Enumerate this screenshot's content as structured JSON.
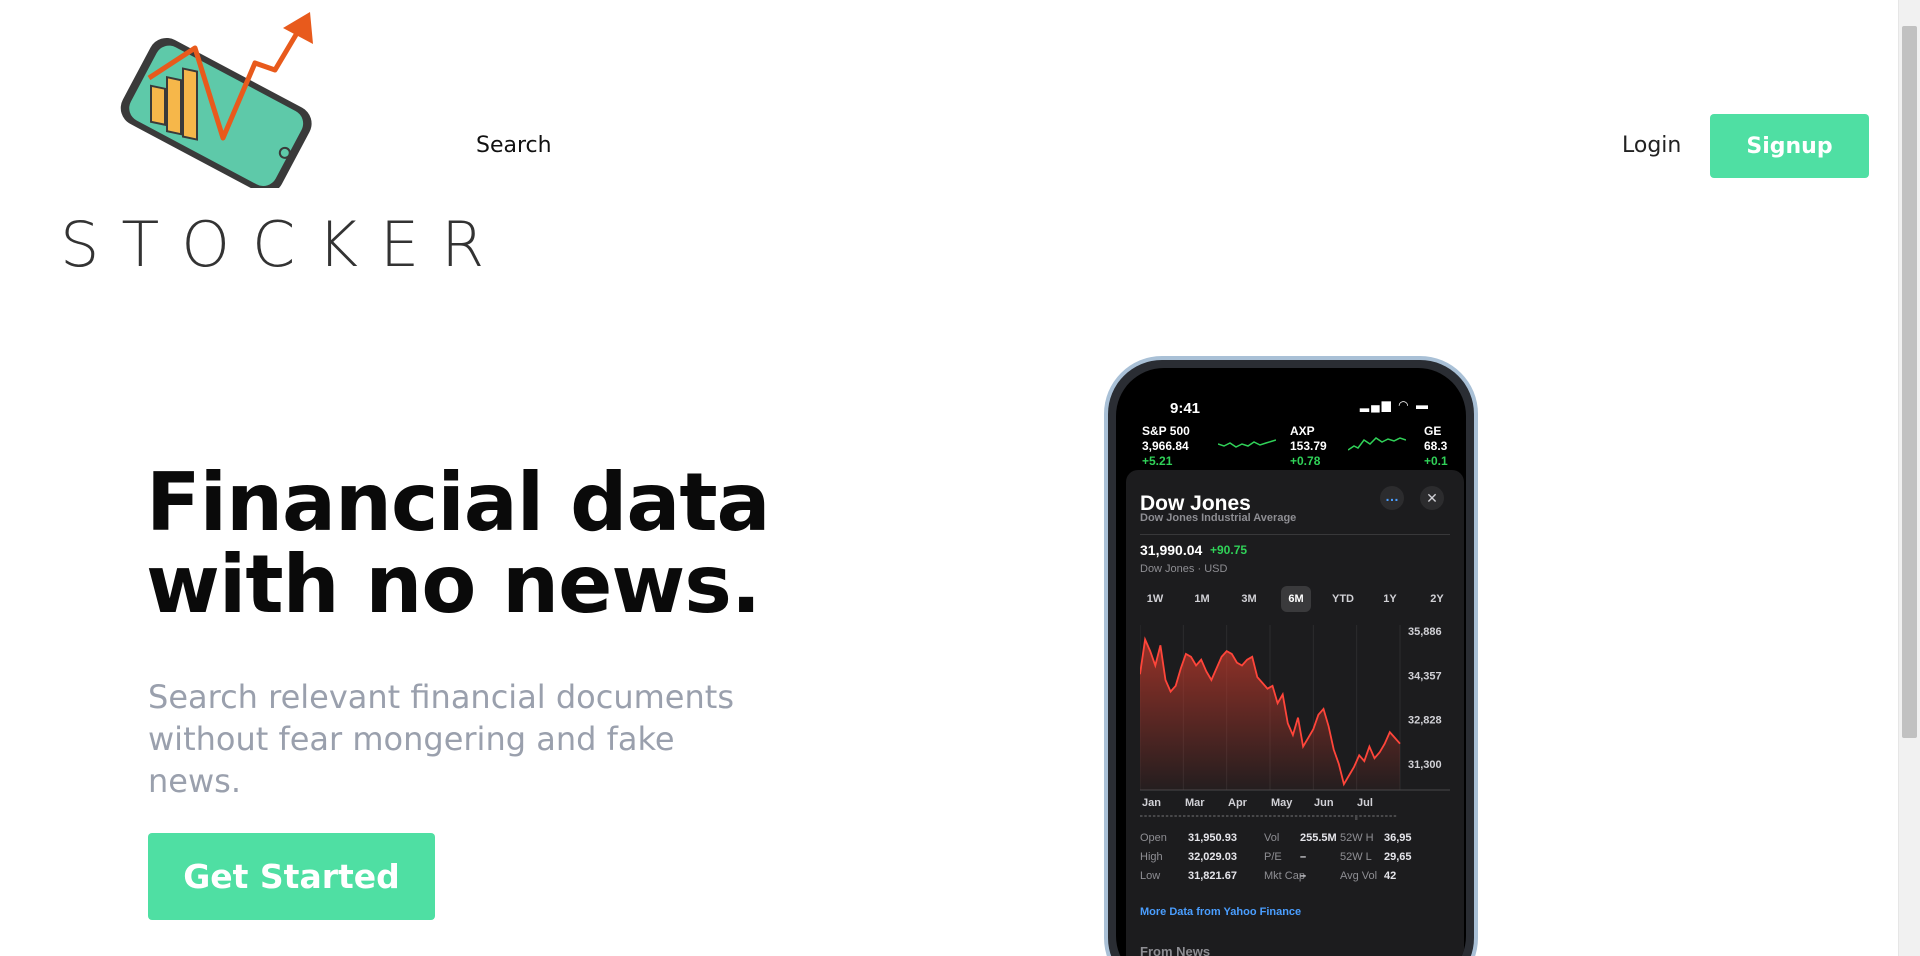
{
  "brand": {
    "name": "STOCKER",
    "accent": "#4fdfa3"
  },
  "nav": {
    "search": "Search",
    "login": "Login",
    "signup": "Signup"
  },
  "hero": {
    "title_line1": "Financial data",
    "title_line2": "with no news.",
    "subtitle": "Search relevant financial documents without fear mongering and fake news.",
    "cta": "Get Started"
  },
  "phone": {
    "time": "9:41",
    "tickers": [
      {
        "symbol": "S&P 500",
        "price": "3,966.84",
        "change": "+5.21"
      },
      {
        "symbol": "AXP",
        "price": "153.79",
        "change": "+0.78"
      },
      {
        "symbol": "GE",
        "price": "68.3",
        "change": "+0.1"
      }
    ],
    "card": {
      "title": "Dow Jones",
      "subtitle": "Dow Jones Industrial Average",
      "price": "31,990.04",
      "change": "+90.75",
      "meta": "Dow Jones · USD",
      "more_icon": "…",
      "close_icon": "✕",
      "ranges": [
        "1W",
        "1M",
        "3M",
        "6M",
        "YTD",
        "1Y",
        "2Y"
      ],
      "active_range": "6M",
      "stats": [
        [
          "Open",
          "31,950.93",
          "Vol",
          "255.5M",
          "52W H",
          "36,95"
        ],
        [
          "High",
          "32,029.03",
          "P/E",
          "–",
          "52W L",
          "29,65"
        ],
        [
          "Low",
          "31,821.67",
          "Mkt Cap",
          "–",
          "Avg Vol",
          "42"
        ]
      ],
      "yahoo_link": "More Data from Yahoo Finance",
      "from_news": "From  News"
    },
    "chart_data": {
      "type": "area",
      "title": "Dow Jones",
      "x_labels": [
        "Jan",
        "Mar",
        "Apr",
        "May",
        "Jun",
        "Jul"
      ],
      "y_ticks": [
        35886,
        34357,
        32828,
        31300
      ],
      "ylim": [
        30400,
        36100
      ],
      "values": [
        34400,
        35600,
        35200,
        34700,
        35400,
        34200,
        33800,
        34000,
        34600,
        35100,
        35000,
        34700,
        34900,
        34500,
        34200,
        34600,
        35000,
        35200,
        35100,
        34800,
        34700,
        34900,
        35000,
        34300,
        34100,
        33900,
        34000,
        33400,
        33700,
        32700,
        32300,
        32900,
        31900,
        32200,
        32500,
        33000,
        33200,
        32600,
        31800,
        31300,
        30600,
        30900,
        31200,
        31600,
        31400,
        31900,
        31500,
        31700,
        32000,
        32400,
        32200,
        32000
      ]
    }
  }
}
